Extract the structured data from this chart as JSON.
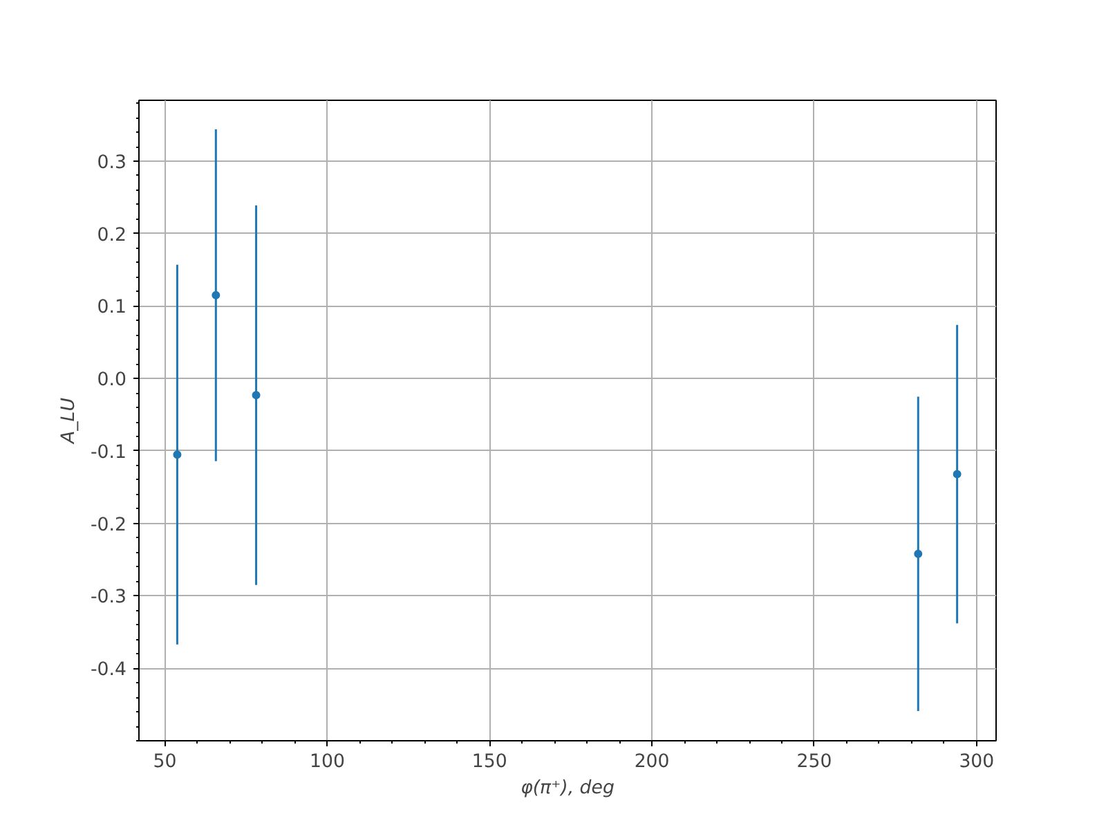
{
  "chart_data": {
    "type": "scatter",
    "xlabel": "φ(π⁺), deg",
    "ylabel": "A_LU",
    "x": [
      53.8,
      65.7,
      78.1,
      282,
      294
    ],
    "series": [
      {
        "color": "#1f77b4",
        "values": [
          -0.105,
          0.115,
          -0.023,
          -0.242,
          -0.132
        ],
        "errors": [
          0.262,
          0.229,
          0.262,
          0.217,
          0.206
        ]
      }
    ],
    "xlim": [
      42,
      306
    ],
    "xticks": [
      50,
      100,
      150,
      200,
      250,
      300
    ],
    "ylim": [
      -0.5,
      0.384
    ],
    "yticks": [
      -0.4,
      -0.3,
      -0.2,
      -0.1,
      {
        "value": 0,
        "label": "0.0"
      },
      0.1,
      0.2,
      0.3
    ],
    "grid": true,
    "marker": "circle"
  }
}
